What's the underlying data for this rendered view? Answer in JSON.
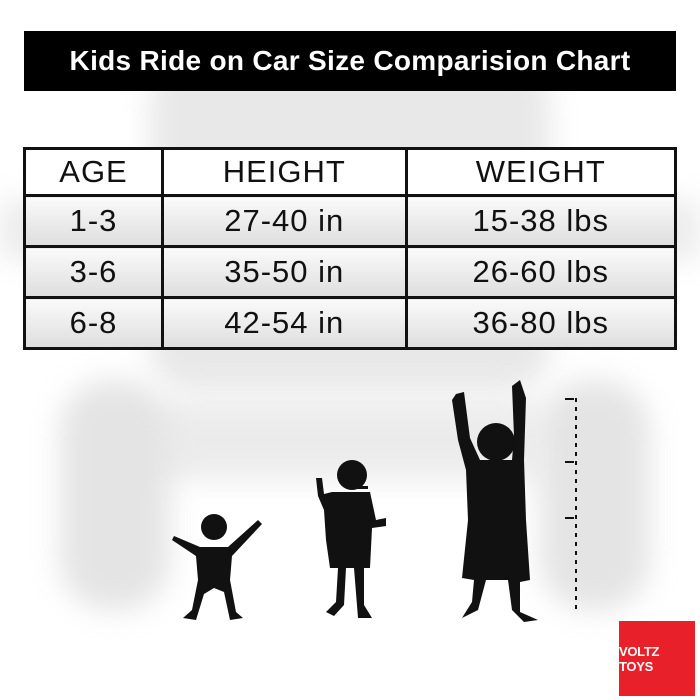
{
  "title": "Kids Ride on Car Size Comparision Chart",
  "table": {
    "headers": [
      "AGE",
      "HEIGHT",
      "WEIGHT"
    ],
    "rows": [
      [
        "1-3",
        "27-40 in",
        "15-38 lbs"
      ],
      [
        "3-6",
        "35-50 in",
        "26-60 lbs"
      ],
      [
        "6-8",
        "42-54 in",
        "36-80 lbs"
      ]
    ]
  },
  "logo": {
    "text": "VOLTZ TOYS",
    "color": "#e8202a"
  },
  "colors": {
    "title_bg": "#000000",
    "silhouette": "#111111"
  }
}
